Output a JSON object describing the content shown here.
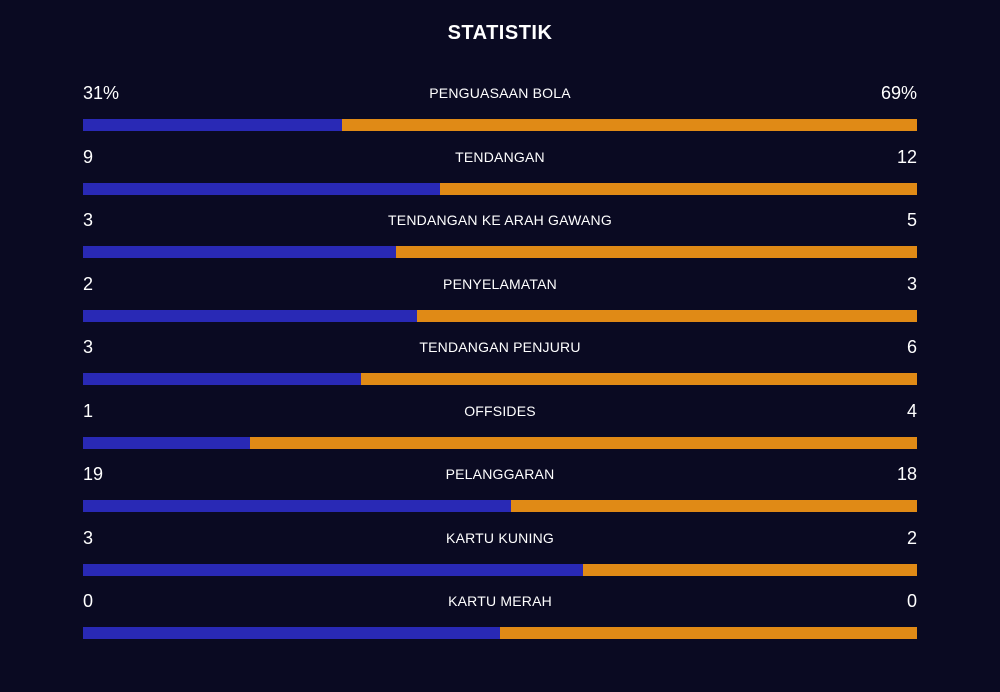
{
  "title": "STATISTIK",
  "colors": {
    "background": "#0a0a22",
    "home_bar": "#2929b5",
    "away_bar": "#e08a16",
    "text": "#ffffff"
  },
  "stats": [
    {
      "label": "PENGUASAAN BOLA",
      "home": "31%",
      "away": "69%",
      "home_share": 0.31
    },
    {
      "label": "TENDANGAN",
      "home": "9",
      "away": "12",
      "home_share": 0.4286
    },
    {
      "label": "TENDANGAN KE ARAH GAWANG",
      "home": "3",
      "away": "5",
      "home_share": 0.375
    },
    {
      "label": "PENYELAMATAN",
      "home": "2",
      "away": "3",
      "home_share": 0.4
    },
    {
      "label": "TENDANGAN PENJURU",
      "home": "3",
      "away": "6",
      "home_share": 0.3333
    },
    {
      "label": "OFFSIDES",
      "home": "1",
      "away": "4",
      "home_share": 0.2
    },
    {
      "label": "PELANGGARAN",
      "home": "19",
      "away": "18",
      "home_share": 0.5135
    },
    {
      "label": "KARTU KUNING",
      "home": "3",
      "away": "2",
      "home_share": 0.6
    },
    {
      "label": "KARTU MERAH",
      "home": "0",
      "away": "0",
      "home_share": 0.5
    }
  ]
}
